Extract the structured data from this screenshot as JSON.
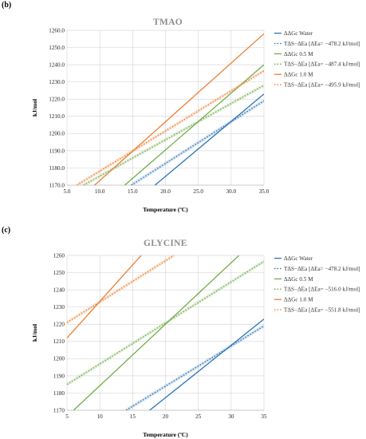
{
  "chart_data": [
    {
      "panel": "(b)",
      "type": "line",
      "title": "TMAO",
      "xlabel": "Temperature (ºC)",
      "ylabel": "kJ/mol",
      "xlim": [
        5.0,
        35.0
      ],
      "ylim": [
        1170.0,
        1260.0
      ],
      "xticks": [
        5.0,
        10.0,
        15.0,
        20.0,
        25.0,
        30.0,
        35.0
      ],
      "yticks": [
        1170.0,
        1180.0,
        1190.0,
        1200.0,
        1210.0,
        1220.0,
        1230.0,
        1240.0,
        1250.0,
        1260.0
      ],
      "tick_decimals": 1,
      "grid": true,
      "legend": "right",
      "series": [
        {
          "name": "ΔΔGc Water",
          "color": "#2e75b6",
          "style": "solid",
          "x": [
            18.4,
            35.0
          ],
          "y": [
            1170.0,
            1223.0
          ]
        },
        {
          "name": "TΔS−ΔEa [ΔEa= −478.2 kJ/mol]",
          "color": "#2e75b6",
          "style": "dotted",
          "x": [
            14.8,
            35.0
          ],
          "y": [
            1170.0,
            1219.0
          ]
        },
        {
          "name": "ΔΔGc 0.5 M",
          "color": "#70ad47",
          "style": "solid",
          "x": [
            13.8,
            35.0
          ],
          "y": [
            1170.0,
            1240.0
          ]
        },
        {
          "name": "TΔS−ΔEa [ΔEa= −487.4 kJ/mol]",
          "color": "#70ad47",
          "style": "dotted",
          "x": [
            7.5,
            35.0
          ],
          "y": [
            1170.0,
            1228.0
          ]
        },
        {
          "name": "ΔΔGc 1.0 M",
          "color": "#ed7d31",
          "style": "solid",
          "x": [
            9.2,
            35.0
          ],
          "y": [
            1170.0,
            1258.0
          ]
        },
        {
          "name": "TΔS−ΔEa [ΔEa= −495.9 kJ/mol]",
          "color": "#ed7d31",
          "style": "dotted",
          "x": [
            6.5,
            35.0
          ],
          "y": [
            1170.0,
            1236.5
          ]
        }
      ]
    },
    {
      "panel": "(c)",
      "type": "line",
      "title": "GLYCINE",
      "xlabel": "Temperature (ºC)",
      "ylabel": "kJ/mol",
      "xlim": [
        5,
        35
      ],
      "ylim": [
        1170,
        1260
      ],
      "xticks": [
        5,
        10,
        15,
        20,
        25,
        30,
        35
      ],
      "yticks": [
        1170,
        1180,
        1190,
        1200,
        1210,
        1220,
        1230,
        1240,
        1250,
        1260
      ],
      "tick_decimals": 0,
      "grid": true,
      "legend": "right",
      "series": [
        {
          "name": "ΔΔGc Water",
          "color": "#2e75b6",
          "style": "solid",
          "x": [
            17.6,
            35.0
          ],
          "y": [
            1170.0,
            1223.0
          ]
        },
        {
          "name": "TΔS−ΔEa [ΔEa= −478.2 kJ/mol]",
          "color": "#2e75b6",
          "style": "dotted",
          "x": [
            14.0,
            35.0
          ],
          "y": [
            1170.0,
            1219.0
          ]
        },
        {
          "name": "ΔΔGc 0.5 M",
          "color": "#70ad47",
          "style": "solid",
          "x": [
            6.0,
            31.2
          ],
          "y": [
            1170.0,
            1260.0
          ]
        },
        {
          "name": "TΔS−ΔEa [ΔEa= −516.0 kJ/mol]",
          "color": "#70ad47",
          "style": "dotted",
          "x": [
            5.0,
            35.0
          ],
          "y": [
            1185.0,
            1256.5
          ]
        },
        {
          "name": "ΔΔGc 1.0 M",
          "color": "#ed7d31",
          "style": "solid",
          "x": [
            5.0,
            16.3
          ],
          "y": [
            1212.0,
            1260.0
          ]
        },
        {
          "name": "TΔS−ΔEa [ΔEa= −551.8 kJ/mol]",
          "color": "#ed7d31",
          "style": "dotted",
          "x": [
            5.0,
            21.3
          ],
          "y": [
            1221.0,
            1260.0
          ]
        }
      ]
    }
  ]
}
